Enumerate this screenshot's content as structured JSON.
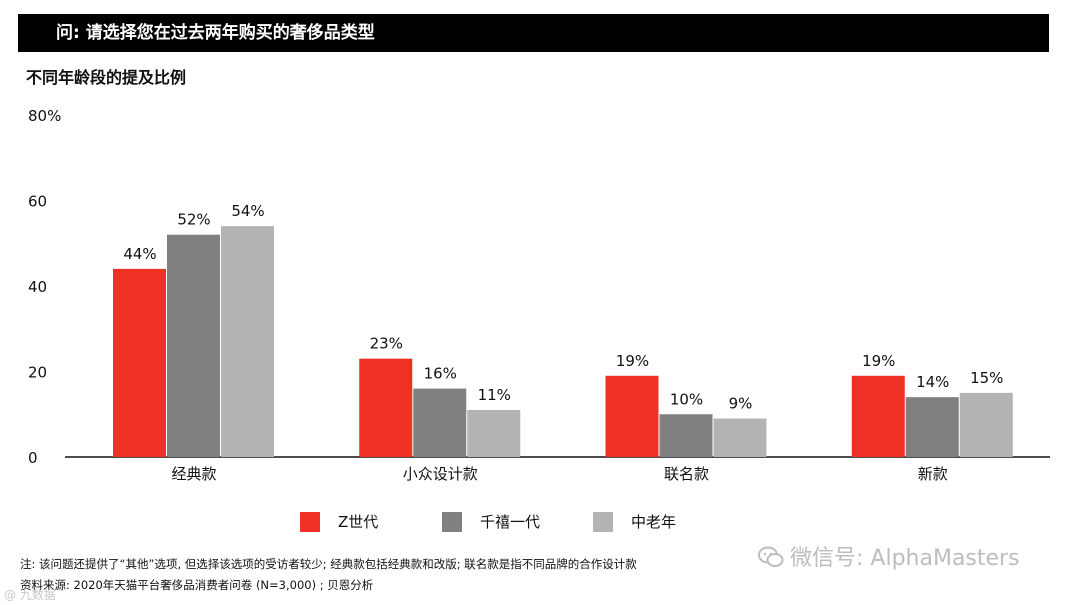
{
  "header": {
    "question": "问: 请选择您在过去两年购买的奢侈品类型"
  },
  "subtitle": "不同年龄段的提及比例",
  "chart_data": {
    "type": "bar",
    "categories": [
      "经典款",
      "小众设计款",
      "联名款",
      "新款"
    ],
    "series": [
      {
        "name": "Z世代",
        "color": "#ee3124",
        "values": [
          44,
          23,
          19,
          19
        ],
        "labels": [
          "44%",
          "23%",
          "19%",
          "19%"
        ]
      },
      {
        "name": "千禧一代",
        "color": "#808080",
        "values": [
          52,
          16,
          10,
          14
        ],
        "labels": [
          "52%",
          "16%",
          "10%",
          "14%"
        ]
      },
      {
        "name": "中老年",
        "color": "#b3b3b3",
        "values": [
          54,
          11,
          9,
          15
        ],
        "labels": [
          "54%",
          "11%",
          "9%",
          "15%"
        ]
      }
    ],
    "ylim": [
      0,
      80
    ],
    "yticks": [
      0,
      20,
      40,
      60,
      80
    ],
    "ytick_labels": [
      "0",
      "20",
      "40",
      "60",
      "80%"
    ],
    "grid": false,
    "legend_position": "bottom-center"
  },
  "footnotes": {
    "note": "注: 该问题还提供了“其他”选项, 但选择该选项的受访者较少; 经典款包括经典款和改版; 联名款是指不同品牌的合作设计款",
    "source": "资料来源: 2020年天猫平台奢侈品消费者问卷 (N=3,000) ; 贝恩分析"
  },
  "watermark": {
    "text": "微信号: AlphaMasters",
    "small_text": "@ 九数据"
  }
}
